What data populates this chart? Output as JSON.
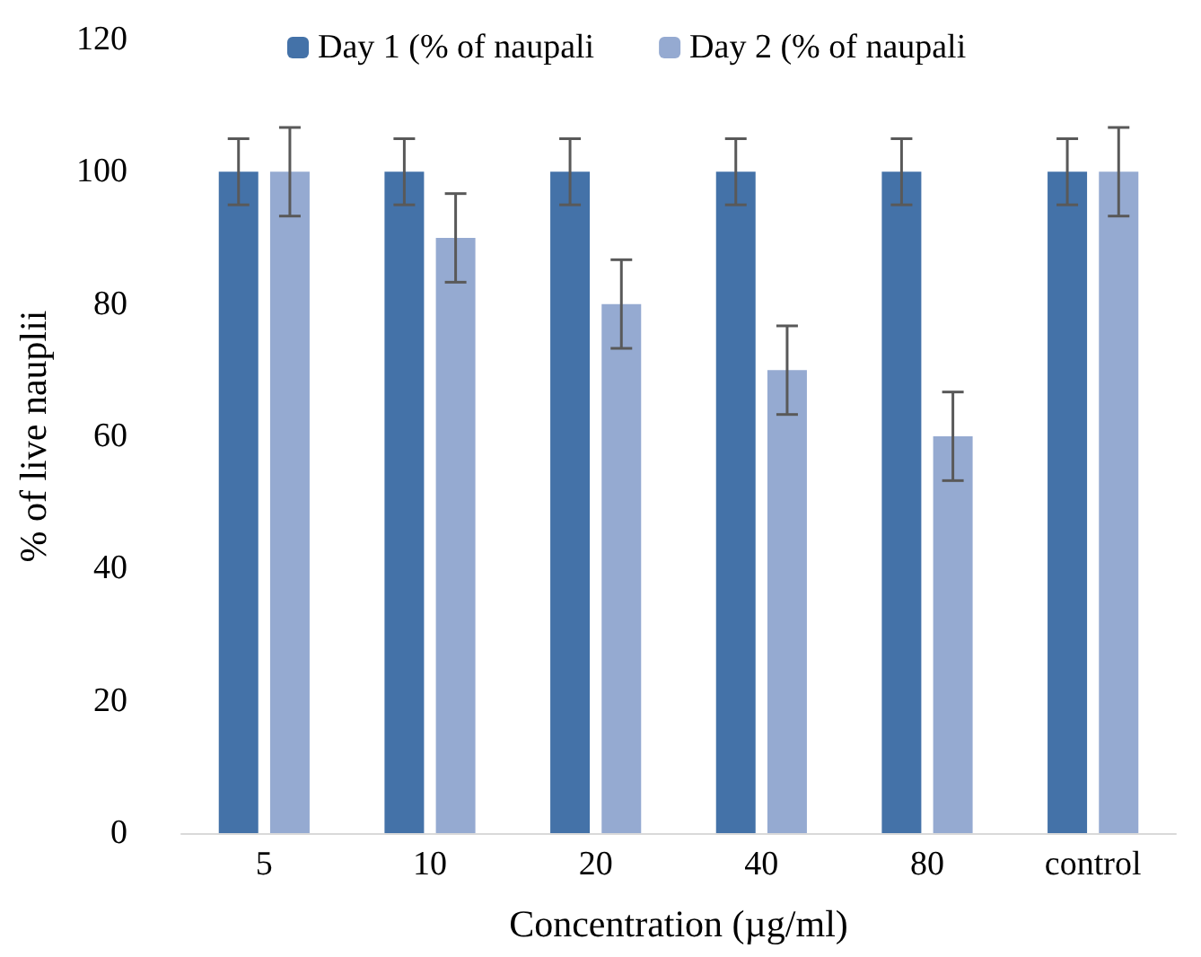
{
  "chart_data": {
    "type": "bar",
    "xlabel": "Concentration (µg/ml)",
    "ylabel": "% of live nauplii",
    "categories": [
      "5",
      "10",
      "20",
      "40",
      "80",
      "control"
    ],
    "series": [
      {
        "name": "Day 1 (% of naupali",
        "color": "#4472a8",
        "values": [
          100,
          100,
          100,
          100,
          100,
          100
        ],
        "errors": [
          5,
          5,
          5,
          5,
          5,
          5
        ]
      },
      {
        "name": "Day 2 (% of naupali",
        "color": "#95aad1",
        "values": [
          100,
          90,
          80,
          70,
          60,
          100
        ],
        "errors": [
          6.7,
          6.7,
          6.7,
          6.7,
          6.7,
          6.7
        ]
      }
    ],
    "ylim": [
      0,
      120
    ],
    "yticks": [
      0,
      20,
      40,
      60,
      80,
      100,
      120
    ],
    "grid": false,
    "legend": "top"
  }
}
